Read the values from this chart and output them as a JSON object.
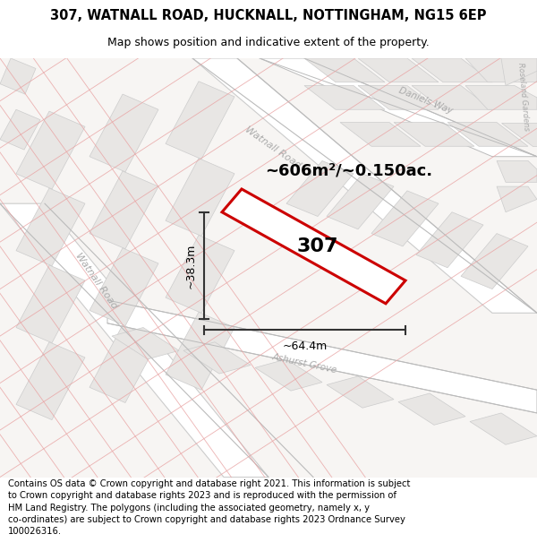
{
  "title_line1": "307, WATNALL ROAD, HUCKNALL, NOTTINGHAM, NG15 6EP",
  "title_line2": "Map shows position and indicative extent of the property.",
  "footer_text": "Contains OS data © Crown copyright and database right 2021. This information is subject to Crown copyright and database rights 2023 and is reproduced with the permission of HM Land Registry. The polygons (including the associated geometry, namely x, y co-ordinates) are subject to Crown copyright and database rights 2023 Ordnance Survey 100026316.",
  "area_label": "~606m²/~0.150ac.",
  "property_label": "307",
  "dim_width": "~64.4m",
  "dim_height": "~38.3m",
  "map_bg": "#f7f5f3",
  "road_fill": "#ffffff",
  "block_fill": "#e8e6e4",
  "block_edge": "#cccccc",
  "prop_line": "#e8a0a0",
  "property_edge": "#cc0000",
  "dim_color": "#333333",
  "street_color": "#aaaaaa",
  "watnall_road_color": "#bbbbbb"
}
